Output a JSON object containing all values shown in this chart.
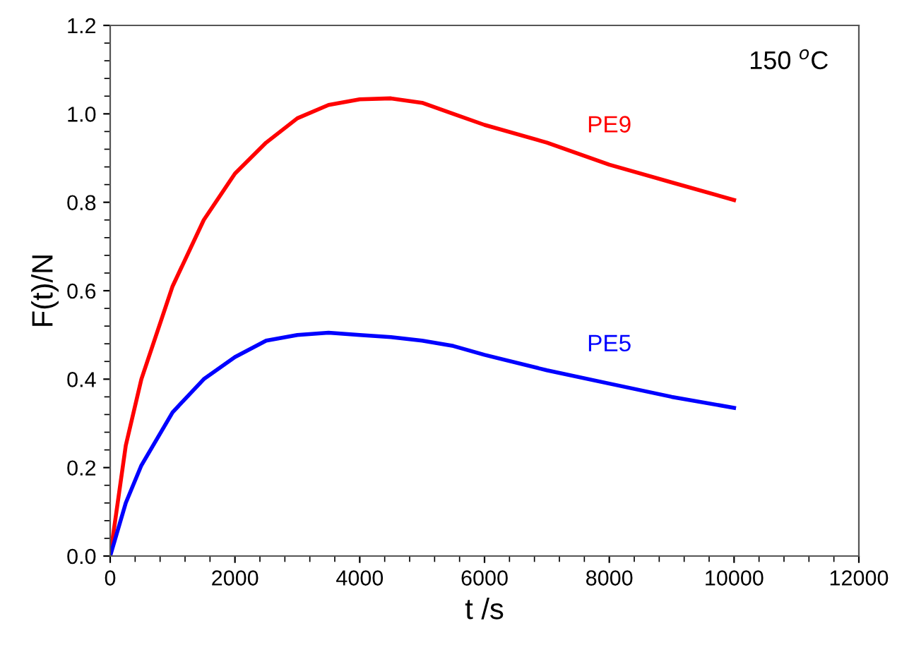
{
  "chart_data": {
    "type": "line",
    "xlabel": "t /s",
    "ylabel": "F(t)/N",
    "annotations": [
      "150 $^{o}$C"
    ],
    "xlim": [
      0,
      12000
    ],
    "xticks": [
      0,
      2000,
      4000,
      6000,
      8000,
      10000,
      12000
    ],
    "ylim": [
      0,
      1.2
    ],
    "yticks": [
      {
        "value": 0,
        "label": "0.0"
      },
      0.2,
      0.4,
      0.6,
      0.8,
      {
        "value": 1.0,
        "label": "1.0"
      },
      1.2
    ],
    "grid": false,
    "legend": false,
    "marker": "none",
    "line_style": "solid",
    "series": [
      {
        "name": "PE9",
        "color": "#ff0000",
        "x": [
          0,
          250,
          500,
          1000,
          1500,
          2000,
          2500,
          3000,
          3500,
          4000,
          4500,
          5000,
          5500,
          6000,
          7000,
          8000,
          9000,
          10000
        ],
        "values": [
          0,
          0.25,
          0.4,
          0.61,
          0.76,
          0.865,
          0.935,
          0.99,
          1.02,
          1.033,
          1.035,
          1.025,
          1.0,
          0.975,
          0.935,
          0.885,
          0.845,
          0.805
        ]
      },
      {
        "name": "PE5",
        "color": "#0000ff",
        "x": [
          0,
          250,
          500,
          1000,
          1500,
          2000,
          2500,
          3000,
          3500,
          4000,
          4500,
          5000,
          5500,
          6000,
          7000,
          8000,
          9000,
          10000
        ],
        "values": [
          0,
          0.12,
          0.205,
          0.325,
          0.4,
          0.45,
          0.487,
          0.5,
          0.505,
          0.5,
          0.495,
          0.487,
          0.475,
          0.455,
          0.42,
          0.39,
          0.36,
          0.335
        ]
      }
    ]
  }
}
